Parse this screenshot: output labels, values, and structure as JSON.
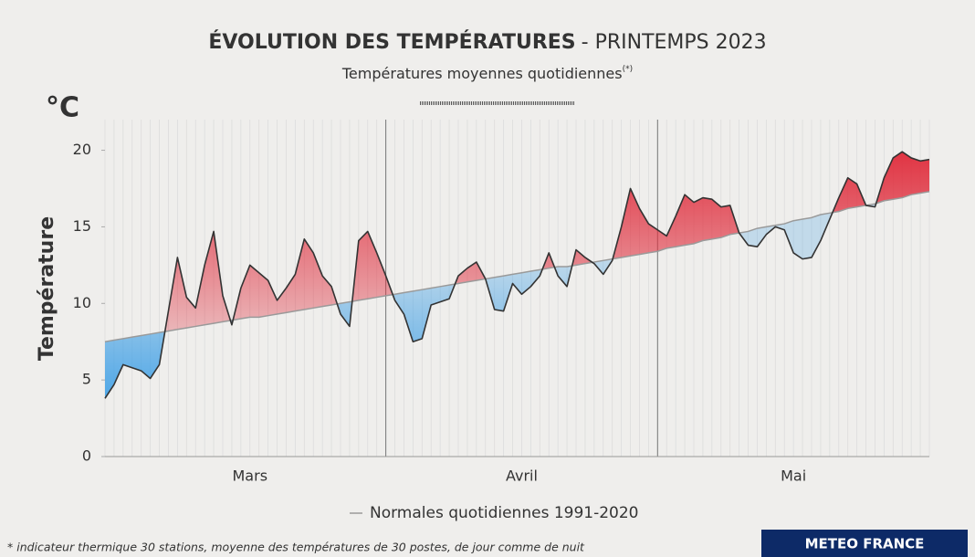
{
  "chart_data": {
    "type": "line",
    "title": "ÉVOLUTION DES TEMPÉRATURES",
    "title_suffix": "- PRINTEMPS 2023",
    "subtitle": "Températures moyennes quotidiennes",
    "subtitle_note": "(*)",
    "unit": "°C",
    "y_label": "Température",
    "categories": [
      null,
      null,
      null,
      null,
      null,
      null,
      null,
      null,
      null,
      null,
      null,
      null,
      null,
      null,
      null,
      null,
      "Mars",
      null,
      null,
      null,
      null,
      null,
      null,
      null,
      null,
      null,
      null,
      null,
      null,
      null,
      null,
      null,
      null,
      null,
      null,
      null,
      null,
      null,
      null,
      null,
      null,
      null,
      null,
      null,
      null,
      null,
      "Avril",
      null,
      null,
      null,
      null,
      null,
      null,
      null,
      null,
      null,
      null,
      null,
      null,
      null,
      null,
      null,
      null,
      null,
      null,
      null,
      null,
      null,
      null,
      null,
      null,
      null,
      null,
      null,
      null,
      null,
      "Mai",
      null,
      null,
      null,
      null,
      null,
      null,
      null,
      null,
      null,
      null,
      null,
      null,
      null,
      null,
      null
    ],
    "series": [
      {
        "color": "#333333",
        "values": [
          3.8,
          4.7,
          6.0,
          5.8,
          5.6,
          5.1,
          6.0,
          9.5,
          13.0,
          10.4,
          9.7,
          12.5,
          14.7,
          10.5,
          8.6,
          11.0,
          12.5,
          12.0,
          11.5,
          10.2,
          11.0,
          11.9,
          14.2,
          13.3,
          11.8,
          11.1,
          9.3,
          8.5,
          14.1,
          14.7,
          13.3,
          11.8,
          10.2,
          9.3,
          7.5,
          7.7,
          9.9,
          10.1,
          10.3,
          11.8,
          12.3,
          12.7,
          11.6,
          9.6,
          9.5,
          11.3,
          10.6,
          11.1,
          11.8,
          13.3,
          11.8,
          11.1,
          13.5,
          13.0,
          12.6,
          11.9,
          12.8,
          15.0,
          17.5,
          16.2,
          15.2,
          14.8,
          14.4,
          15.7,
          17.1,
          16.6,
          16.9,
          16.8,
          16.3,
          16.4,
          14.6,
          13.8,
          13.7,
          14.5,
          15.0,
          14.8,
          13.3,
          12.9,
          13.0,
          14.1,
          15.5,
          16.9,
          18.2,
          17.8,
          16.4,
          16.3,
          18.2,
          19.5,
          19.9,
          19.5,
          19.3,
          19.4
        ]
      },
      {
        "name": "Normales quotidiennes 1991-2020",
        "color": "#9a9a9a",
        "values": [
          7.5,
          7.6,
          7.7,
          7.8,
          7.9,
          8.0,
          8.1,
          8.2,
          8.3,
          8.4,
          8.5,
          8.6,
          8.7,
          8.8,
          8.9,
          9.0,
          9.1,
          9.1,
          9.2,
          9.3,
          9.4,
          9.5,
          9.6,
          9.7,
          9.8,
          9.9,
          10.0,
          10.1,
          10.2,
          10.3,
          10.4,
          10.5,
          10.6,
          10.7,
          10.8,
          10.9,
          11.0,
          11.1,
          11.2,
          11.3,
          11.4,
          11.5,
          11.6,
          11.7,
          11.8,
          11.9,
          12.0,
          12.1,
          12.2,
          12.3,
          12.4,
          12.4,
          12.5,
          12.6,
          12.7,
          12.8,
          12.9,
          13.0,
          13.1,
          13.2,
          13.3,
          13.4,
          13.6,
          13.7,
          13.8,
          13.9,
          14.1,
          14.2,
          14.3,
          14.5,
          14.6,
          14.7,
          14.9,
          15.0,
          15.1,
          15.2,
          15.4,
          15.5,
          15.6,
          15.8,
          15.9,
          16.0,
          16.2,
          16.3,
          16.4,
          16.5,
          16.7,
          16.8,
          16.9,
          17.1,
          17.2,
          17.3
        ]
      }
    ],
    "fill_colors": {
      "above": "#e0303f",
      "below": "#3d9fe6"
    },
    "ylim": [
      0,
      22
    ],
    "yticks": [
      0,
      5,
      10,
      15,
      20
    ],
    "grid": true,
    "footnote": "* indicateur thermique 30 stations, moyenne des températures de 30 postes, de jour comme de nuit",
    "source": "METEO FRANCE"
  }
}
